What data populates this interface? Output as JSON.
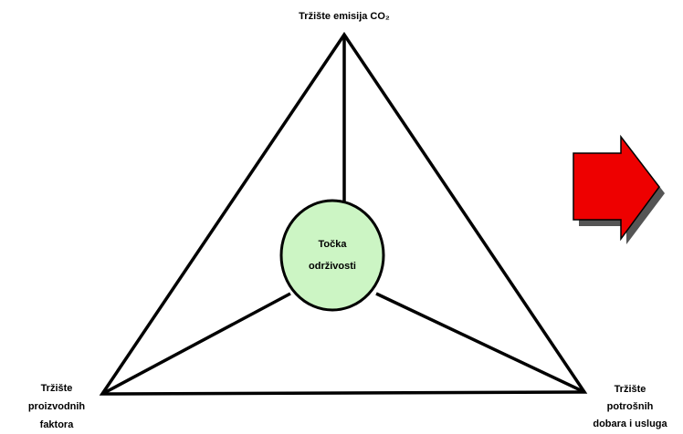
{
  "nodes": [
    {
      "label": [
        "Tržište emisija CO₂"
      ]
    },
    {
      "label": [
        "Tržište",
        "proizvodnih",
        "faktora"
      ]
    },
    {
      "label": [
        "Tržište",
        "potrošnih",
        "dobara i usluga"
      ]
    },
    {
      "label": [
        "Točka",
        "održivosti"
      ]
    }
  ]
}
